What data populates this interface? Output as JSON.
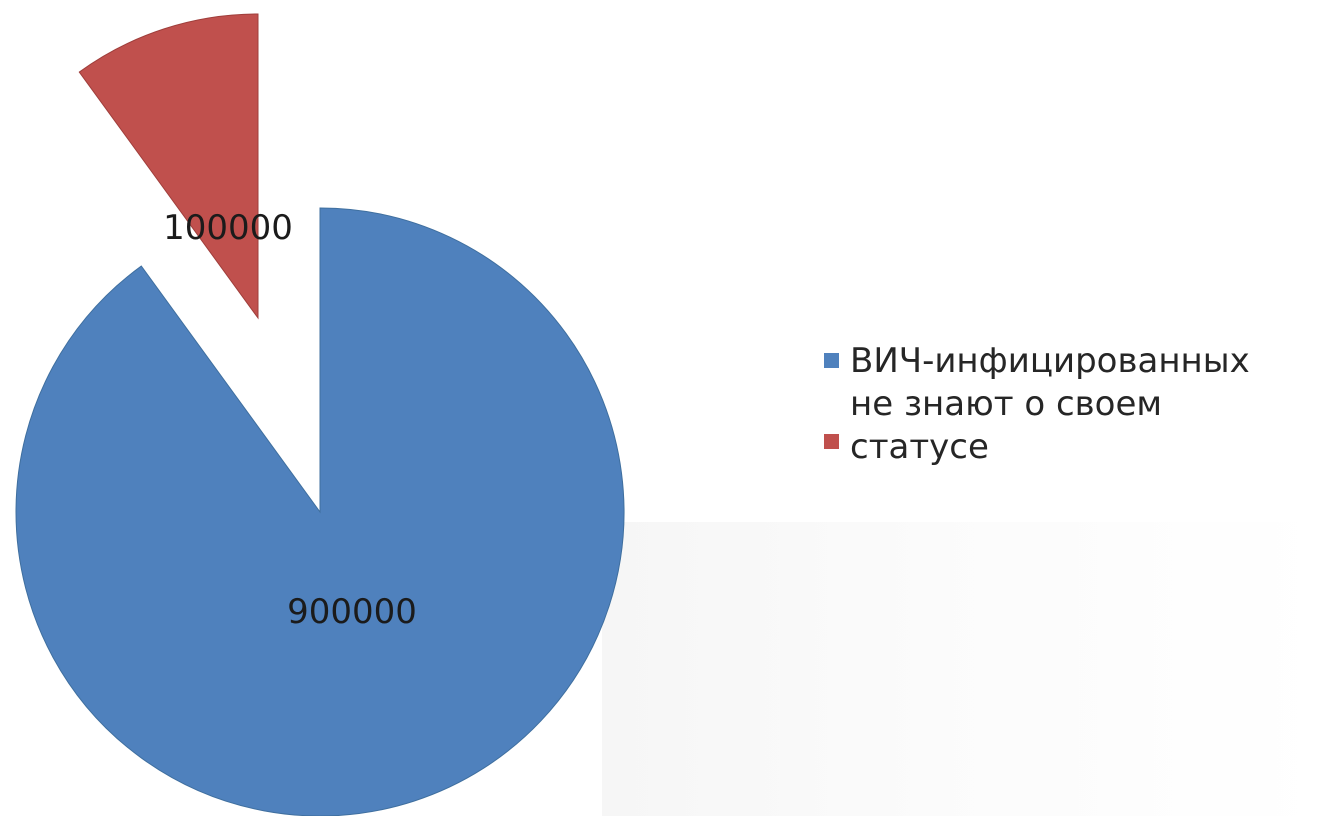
{
  "chart_data": {
    "type": "pie",
    "values": [
      900000,
      100000
    ],
    "data_labels": [
      "900000",
      "100000"
    ],
    "legend": [
      "ВИЧ-инфицированных",
      "не знают о своем статусе"
    ],
    "legend_lines": [
      [
        "ВИЧ-инфицированных"
      ],
      [
        "не знают о своем",
        "статусе"
      ]
    ],
    "colors": [
      "#4f81bd",
      "#c0504d"
    ],
    "exploded_slice": 1,
    "legend_position": "right"
  }
}
